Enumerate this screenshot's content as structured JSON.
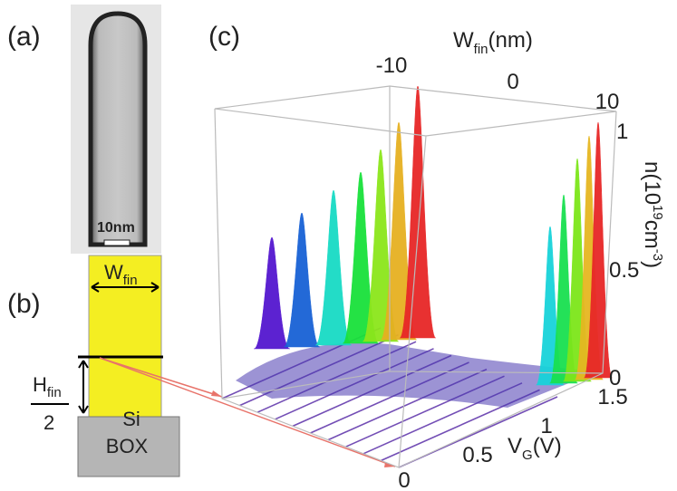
{
  "panels": {
    "a": {
      "label": "(a)",
      "scale_bar": "10nm"
    },
    "b": {
      "label": "(b)",
      "width": "W",
      "width_sub": "fin",
      "height": "H",
      "height_sub": "fin",
      "divisor": "2",
      "channel": "Si",
      "oxide": "BOX"
    },
    "c": {
      "label": "(c)",
      "w_axis": {
        "title": "W",
        "title_sub": "fin",
        "unit": "(nm)",
        "ticks": [
          "-10",
          "0",
          "10"
        ]
      },
      "n_axis": {
        "title": "n(10",
        "title_sup": "19",
        "unit": "cm",
        "unit_sup": "-3",
        "close": ")",
        "ticks": [
          "1",
          "0.5",
          "0"
        ]
      },
      "v_axis": {
        "title": "V",
        "title_sub": "G",
        "unit": "(V)",
        "ticks": [
          "1.5",
          "1",
          "0.5",
          "0"
        ]
      }
    }
  }
}
